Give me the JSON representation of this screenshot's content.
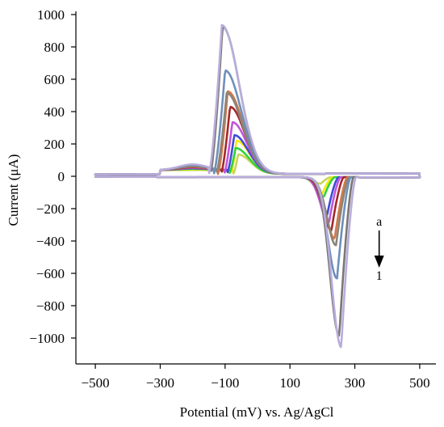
{
  "chart_data": {
    "type": "line",
    "xlabel": "Potential (mV) vs. Ag/AgCl",
    "ylabel": "Current (μA)",
    "xlim": [
      -560,
      550
    ],
    "ylim": [
      -1160,
      1000
    ],
    "xticks": [
      -500,
      -300,
      -100,
      100,
      300,
      500
    ],
    "yticks": [
      1000,
      800,
      600,
      400,
      200,
      0,
      -200,
      -400,
      -600,
      -800,
      -1000
    ],
    "xtick_labels": [
      "−500",
      "−300",
      "−100",
      "100",
      "300",
      "500"
    ],
    "ytick_labels": [
      "1000",
      "800",
      "600",
      "400",
      "200",
      "0",
      "−200",
      "−400",
      "−600",
      "−800",
      "−1000"
    ],
    "grid": false,
    "legend": "none",
    "annotation": {
      "top_label": "a",
      "bottom_label": "1",
      "arrow_direction": "down",
      "x": 375,
      "y_top": -325,
      "y_bottom": -570
    },
    "series": [
      {
        "color": "#c8d65a",
        "ox_peak": {
          "x": -60,
          "y": 120
        },
        "red_peak": {
          "x": 195,
          "y": -40
        }
      },
      {
        "color": "#f5e90a",
        "ox_peak": {
          "x": -65,
          "y": 205
        },
        "red_peak": {
          "x": 200,
          "y": -100
        }
      },
      {
        "color": "#2fd23c",
        "ox_peak": {
          "x": -68,
          "y": 160
        },
        "red_peak": {
          "x": 205,
          "y": -120
        }
      },
      {
        "color": "#3f4bd9",
        "ox_peak": {
          "x": -72,
          "y": 240
        },
        "red_peak": {
          "x": 215,
          "y": -230
        }
      },
      {
        "color": "#c255d8",
        "ox_peak": {
          "x": -78,
          "y": 320
        },
        "red_peak": {
          "x": 220,
          "y": -285
        }
      },
      {
        "color": "#a3282a",
        "ox_peak": {
          "x": -85,
          "y": 415
        },
        "red_peak": {
          "x": 228,
          "y": -330
        }
      },
      {
        "color": "#d3794a",
        "ox_peak": {
          "x": -92,
          "y": 510
        },
        "red_peak": {
          "x": 238,
          "y": -380
        }
      },
      {
        "color": "#8b8479",
        "ox_peak": {
          "x": -95,
          "y": 500
        },
        "red_peak": {
          "x": 242,
          "y": -420
        }
      },
      {
        "color": "#6f8fbb",
        "ox_peak": {
          "x": -100,
          "y": 640
        },
        "red_peak": {
          "x": 245,
          "y": -625
        }
      },
      {
        "color": "#7a7672",
        "ox_peak": {
          "x": -108,
          "y": 910
        },
        "red_peak": {
          "x": 252,
          "y": -980
        }
      },
      {
        "color": "#b8addc",
        "ox_peak": {
          "x": -110,
          "y": 920
        },
        "red_peak": {
          "x": 258,
          "y": -1050
        }
      }
    ]
  }
}
